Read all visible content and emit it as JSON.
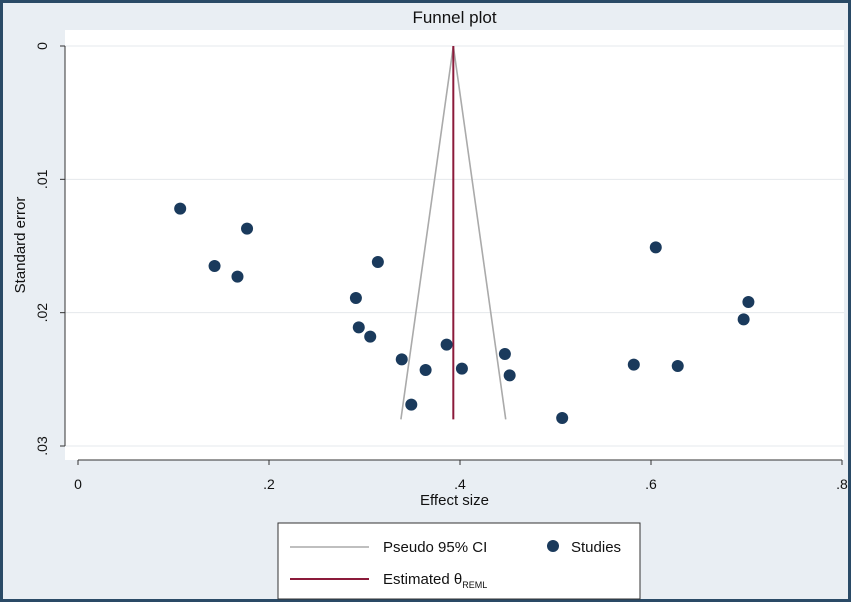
{
  "chart_data": {
    "type": "scatter",
    "title": "Funnel plot",
    "xlabel": "Effect size",
    "ylabel": "Standard error",
    "xlim": [
      0,
      0.8
    ],
    "ylim": [
      0,
      0.03
    ],
    "y_reversed": true,
    "xticks": [
      0,
      0.2,
      0.4,
      0.6,
      0.8
    ],
    "xtick_labels": [
      "0",
      ".2",
      ".4",
      ".6",
      ".8"
    ],
    "yticks": [
      0,
      0.01,
      0.02,
      0.03
    ],
    "ytick_labels": [
      "0",
      ".01",
      ".02",
      ".03"
    ],
    "grid": true,
    "legend_position": "bottom",
    "estimate": 0.393,
    "ci_max_se": 0.028,
    "series": [
      {
        "name": "Studies",
        "color": "#1a3a5c",
        "points": [
          {
            "x": 0.107,
            "y": 0.0122
          },
          {
            "x": 0.177,
            "y": 0.0137
          },
          {
            "x": 0.143,
            "y": 0.0165
          },
          {
            "x": 0.167,
            "y": 0.0173
          },
          {
            "x": 0.314,
            "y": 0.0162
          },
          {
            "x": 0.291,
            "y": 0.0189
          },
          {
            "x": 0.294,
            "y": 0.0211
          },
          {
            "x": 0.306,
            "y": 0.0218
          },
          {
            "x": 0.339,
            "y": 0.0235
          },
          {
            "x": 0.364,
            "y": 0.0243
          },
          {
            "x": 0.349,
            "y": 0.0269
          },
          {
            "x": 0.386,
            "y": 0.0224
          },
          {
            "x": 0.402,
            "y": 0.0242
          },
          {
            "x": 0.447,
            "y": 0.0231
          },
          {
            "x": 0.452,
            "y": 0.0247
          },
          {
            "x": 0.507,
            "y": 0.0279
          },
          {
            "x": 0.605,
            "y": 0.0151
          },
          {
            "x": 0.582,
            "y": 0.0239
          },
          {
            "x": 0.628,
            "y": 0.024
          },
          {
            "x": 0.702,
            "y": 0.0192
          },
          {
            "x": 0.697,
            "y": 0.0205
          }
        ]
      }
    ],
    "legend": {
      "ci_label": "Pseudo 95% CI",
      "studies_label": "Studies",
      "estimate_label": "Estimated θ",
      "estimate_subscript": "REML"
    },
    "colors": {
      "ci_line": "#aaaaaa",
      "estimate_line": "#8b1a3a",
      "points": "#1a3a5c",
      "plot_bg": "#ffffff",
      "outer_bg": "#e9eef3",
      "grid": "#e4e8ec"
    }
  }
}
